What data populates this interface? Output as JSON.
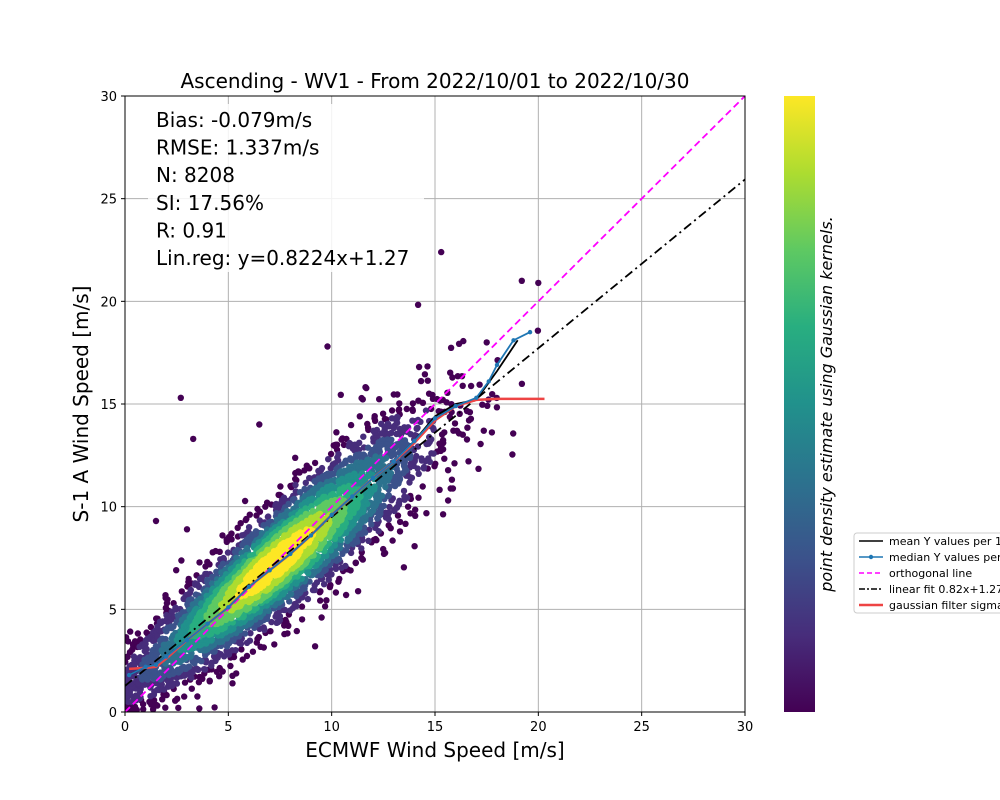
{
  "chart_data": {
    "type": "scatter",
    "title": "Ascending - WV1 - From 2022/10/01 to 2022/10/30",
    "xlabel": "ECMWF Wind Speed [m/s]",
    "ylabel": "S-1 A Wind Speed [m/s]",
    "xlim": [
      0,
      30
    ],
    "ylim": [
      0,
      30
    ],
    "xticks": [
      0,
      5,
      10,
      15,
      20,
      25,
      30
    ],
    "yticks": [
      0,
      5,
      10,
      15,
      20,
      25,
      30
    ],
    "xtick_labels": [
      "0",
      "5",
      "10",
      "15",
      "20",
      "25",
      "30"
    ],
    "ytick_labels": [
      "0",
      "5",
      "10",
      "15",
      "20",
      "25",
      "30"
    ],
    "grid": true,
    "stats": [
      "Bias: -0.079m/s",
      "RMSE: 1.337m/s",
      "N: 8208",
      "SI: 17.56%",
      "R: 0.91",
      "Lin.reg: y=0.8224x+1.27"
    ],
    "colorbar_label": "point density estimate using Gaussian kernels.",
    "colormap": [
      "#440154",
      "#472d7b",
      "#3b528b",
      "#2c728e",
      "#21918c",
      "#28ae80",
      "#5ec962",
      "#addc30",
      "#fde725"
    ],
    "legend_position": "right",
    "series": [
      {
        "name": "mean Y values per 1",
        "style": "line",
        "color": "#000000",
        "x": [
          0.2,
          1.0,
          1.5,
          2.0,
          3.0,
          4.0,
          5.0,
          6.0,
          7.0,
          8.0,
          9.0,
          10.0,
          11.0,
          12.0,
          13.0,
          14.0,
          15.0,
          16.0,
          17.0,
          18.0,
          19.0
        ],
        "y": [
          1.8,
          2.2,
          2.3,
          2.7,
          3.5,
          4.3,
          5.1,
          6.1,
          6.9,
          7.7,
          8.6,
          9.6,
          10.5,
          11.4,
          12.2,
          13.2,
          14.4,
          15.0,
          15.2,
          16.6,
          18.1
        ]
      },
      {
        "name": "median Y values per",
        "style": "line-marker",
        "color": "#1f77b4",
        "x": [
          0.2,
          1.0,
          1.5,
          2.0,
          3.0,
          4.0,
          5.0,
          6.0,
          7.0,
          8.0,
          9.0,
          10.0,
          11.0,
          12.0,
          13.0,
          14.0,
          15.0,
          16.0,
          17.0,
          17.6,
          18.0,
          18.8,
          19.6
        ],
        "y": [
          1.8,
          2.2,
          2.3,
          2.7,
          3.5,
          4.3,
          5.1,
          6.1,
          6.9,
          7.7,
          8.6,
          9.6,
          10.5,
          11.4,
          12.2,
          13.2,
          14.3,
          14.9,
          15.3,
          16.1,
          16.9,
          18.1,
          18.5
        ]
      },
      {
        "name": "orthogonal line",
        "style": "dashed",
        "color": "#ff00ff",
        "x": [
          0,
          30
        ],
        "y": [
          0,
          30
        ]
      },
      {
        "name": "linear fit 0.82x+1.27",
        "style": "dashdot",
        "color": "#000000",
        "x": [
          0,
          30
        ],
        "y": [
          1.27,
          25.94
        ]
      },
      {
        "name": "gaussian filter sigma",
        "style": "line",
        "color": "#ee4444",
        "x": [
          0.2,
          1.0,
          1.5,
          2.0,
          3.0,
          4.0,
          5.0,
          6.0,
          7.0,
          8.0,
          9.0,
          10.0,
          11.0,
          12.0,
          13.0,
          14.0,
          15.0,
          16.0,
          17.0,
          18.0,
          19.0,
          20.3
        ],
        "y": [
          2.1,
          2.15,
          2.2,
          2.6,
          3.5,
          4.3,
          5.1,
          6.1,
          6.9,
          7.7,
          8.6,
          9.6,
          10.5,
          11.4,
          12.2,
          13.1,
          14.2,
          14.9,
          15.2,
          15.25,
          15.25,
          15.25
        ]
      }
    ]
  }
}
